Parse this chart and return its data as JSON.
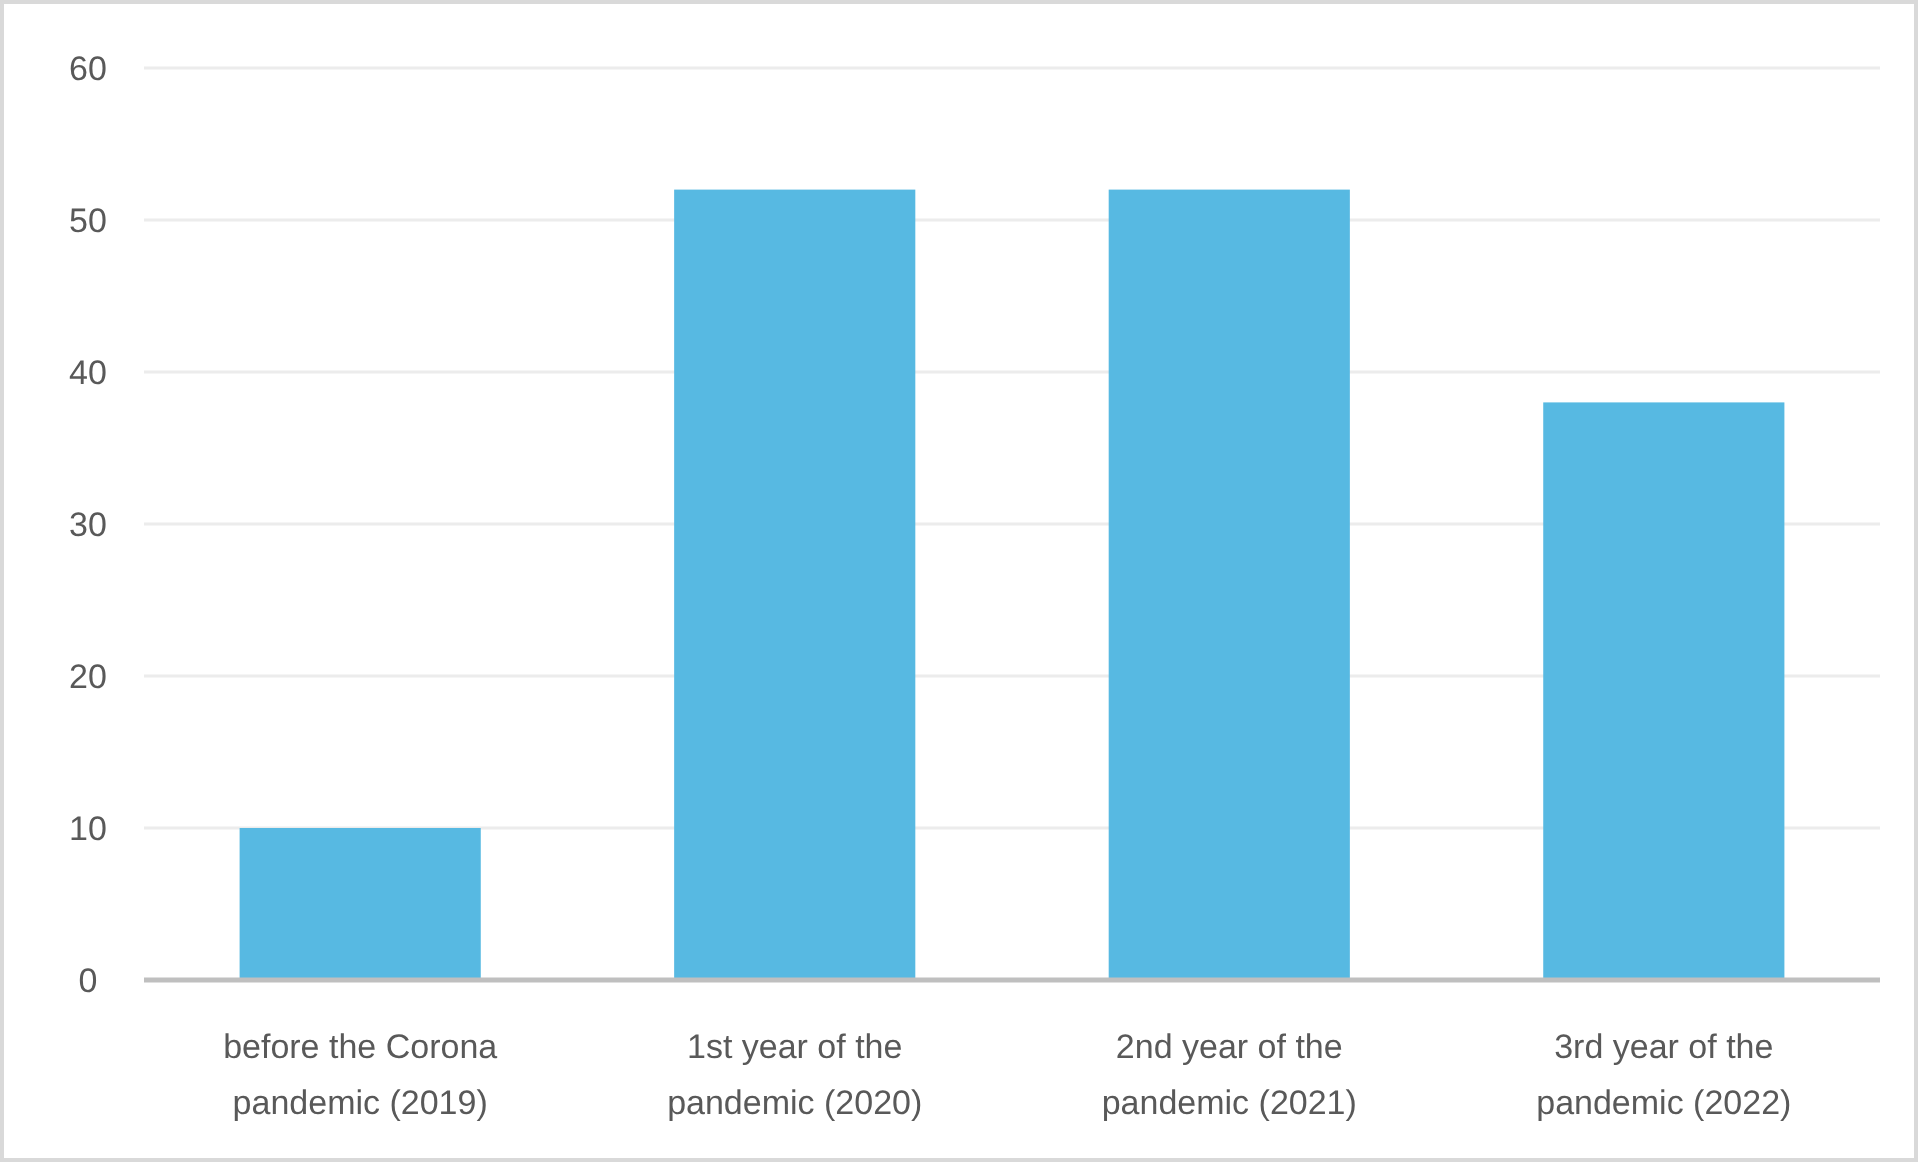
{
  "chart_data": {
    "type": "bar",
    "categories": [
      "before the Corona pandemic (2019)",
      "1st year of the pandemic (2020)",
      "2nd year of the pandemic (2021)",
      "3rd year of the pandemic (2022)"
    ],
    "values": [
      10,
      52,
      52,
      38
    ],
    "color": "#57b9e2",
    "ylim": [
      0,
      60
    ],
    "yticks": [
      0,
      10,
      20,
      30,
      40,
      50,
      60
    ],
    "grid": "y"
  }
}
